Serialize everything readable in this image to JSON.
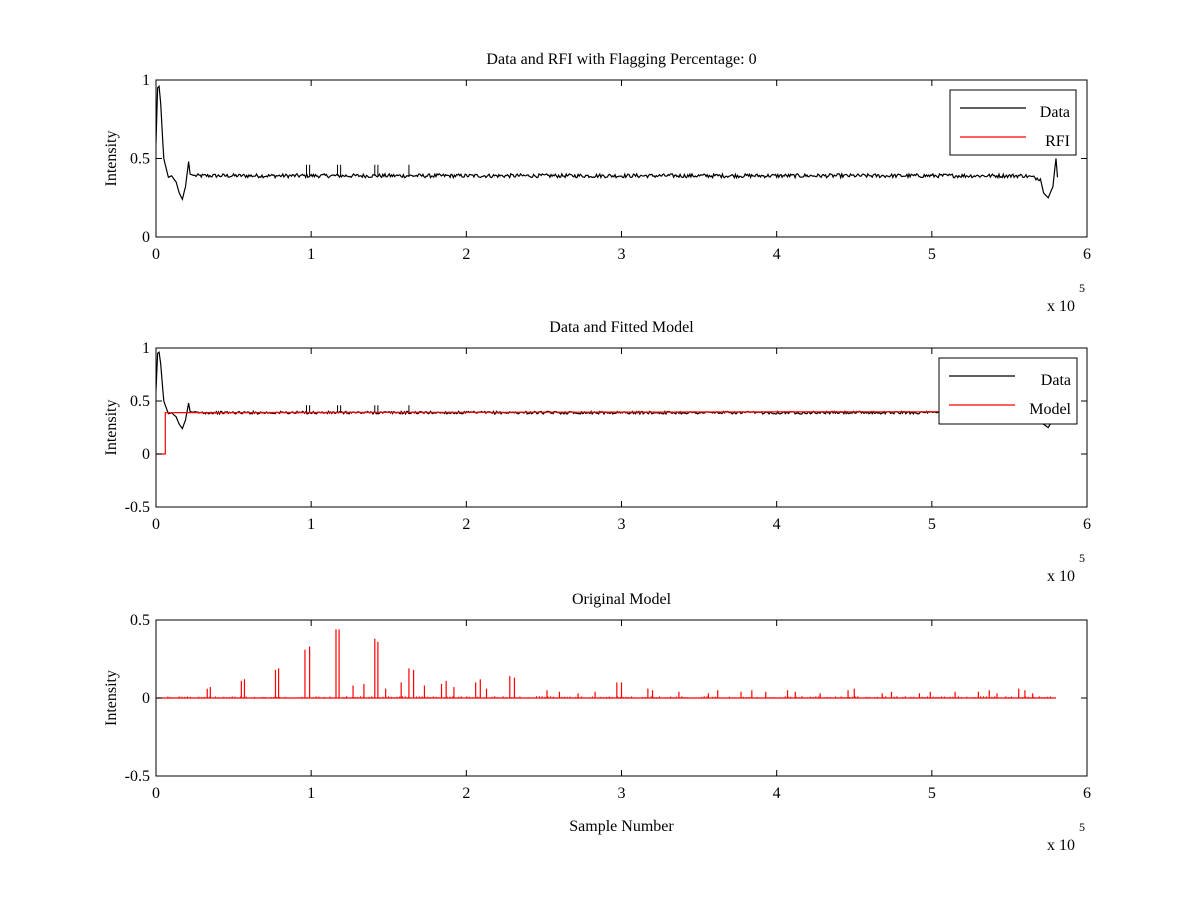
{
  "figure": {
    "panels_count": 3
  },
  "chart_data": [
    {
      "type": "line",
      "title": "Data and RFI with Flagging Percentage: 0",
      "xlabel": "",
      "ylabel": "Intensity",
      "xlim": [
        0,
        600000
      ],
      "ylim": [
        0,
        1
      ],
      "x_ticks": [
        "0",
        "1",
        "2",
        "3",
        "4",
        "5",
        "6"
      ],
      "y_ticks": [
        "0",
        "0.5",
        "1"
      ],
      "x_exponent_label": "x 10",
      "x_exponent_power": "5",
      "legend_position": "top-right",
      "legend": [
        {
          "name": "Data",
          "color": "#000000"
        },
        {
          "name": "RFI",
          "color": "#ff0000"
        }
      ],
      "series": [
        {
          "name": "Data",
          "color": "#000000",
          "baseline": 0.39,
          "x": [
            0,
            1000,
            2000,
            3000,
            5000,
            8000,
            10000,
            13000,
            15000,
            17000,
            19000,
            21000,
            22000,
            25000,
            50000,
            100000,
            200000,
            300000,
            400000,
            500000,
            560000,
            570000,
            572000,
            575000,
            578000,
            580000,
            581000
          ],
          "y": [
            0.6,
            0.95,
            0.96,
            0.85,
            0.5,
            0.38,
            0.39,
            0.35,
            0.28,
            0.24,
            0.32,
            0.48,
            0.4,
            0.39,
            0.39,
            0.39,
            0.39,
            0.39,
            0.39,
            0.39,
            0.39,
            0.37,
            0.28,
            0.25,
            0.32,
            0.5,
            0.38
          ]
        },
        {
          "name": "RFI",
          "color": "#ff0000",
          "x": [],
          "y": []
        }
      ]
    },
    {
      "type": "line",
      "title": "Data and Fitted Model",
      "xlabel": "",
      "ylabel": "Intensity",
      "xlim": [
        0,
        600000
      ],
      "ylim": [
        -0.5,
        1
      ],
      "x_ticks": [
        "0",
        "1",
        "2",
        "3",
        "4",
        "5",
        "6"
      ],
      "y_ticks": [
        "-0.5",
        "0",
        "0.5",
        "1"
      ],
      "x_exponent_label": "x 10",
      "x_exponent_power": "5",
      "legend_position": "top-right",
      "legend": [
        {
          "name": "Data",
          "color": "#000000"
        },
        {
          "name": "Model",
          "color": "#ff0000"
        }
      ],
      "series": [
        {
          "name": "Data",
          "color": "#000000",
          "baseline": 0.39,
          "x": [
            0,
            1000,
            2000,
            3000,
            5000,
            8000,
            10000,
            13000,
            15000,
            17000,
            19000,
            21000,
            22000,
            25000,
            50000,
            100000,
            200000,
            300000,
            400000,
            500000,
            560000,
            570000,
            572000,
            575000,
            578000,
            580000,
            581000
          ],
          "y": [
            0.6,
            0.95,
            0.96,
            0.85,
            0.5,
            0.38,
            0.39,
            0.35,
            0.28,
            0.24,
            0.32,
            0.48,
            0.4,
            0.39,
            0.39,
            0.39,
            0.39,
            0.39,
            0.39,
            0.39,
            0.39,
            0.37,
            0.28,
            0.25,
            0.32,
            0.5,
            0.38
          ]
        },
        {
          "name": "Model",
          "color": "#ff0000",
          "x": [
            0,
            6000,
            6000,
            7000,
            580000
          ],
          "y": [
            0,
            0,
            0.39,
            0.39,
            0.4
          ]
        }
      ]
    },
    {
      "type": "line",
      "title": "Original Model",
      "xlabel": "Sample Number",
      "ylabel": "Intensity",
      "xlim": [
        0,
        600000
      ],
      "ylim": [
        -0.5,
        0.5
      ],
      "x_ticks": [
        "0",
        "1",
        "2",
        "3",
        "4",
        "5",
        "6"
      ],
      "y_ticks": [
        "-0.5",
        "0",
        "0.5"
      ],
      "x_exponent_label": "x 10",
      "x_exponent_power": "5",
      "legend_position": "none",
      "series": [
        {
          "color": "#ff0000",
          "baseline": 0.0,
          "spikes": [
            [
              33000,
              0.06
            ],
            [
              35000,
              0.07
            ],
            [
              55000,
              0.11
            ],
            [
              57000,
              0.12
            ],
            [
              77000,
              0.18
            ],
            [
              79000,
              0.19
            ],
            [
              96000,
              0.31
            ],
            [
              99000,
              0.33
            ],
            [
              116000,
              0.44
            ],
            [
              118000,
              0.44
            ],
            [
              141000,
              0.38
            ],
            [
              143000,
              0.36
            ],
            [
              127000,
              0.08
            ],
            [
              134000,
              0.09
            ],
            [
              148000,
              0.06
            ],
            [
              158000,
              0.1
            ],
            [
              163000,
              0.19
            ],
            [
              166000,
              0.18
            ],
            [
              173000,
              0.08
            ],
            [
              184000,
              0.09
            ],
            [
              187000,
              0.11
            ],
            [
              192000,
              0.07
            ],
            [
              206000,
              0.1
            ],
            [
              209000,
              0.12
            ],
            [
              213000,
              0.06
            ],
            [
              228000,
              0.14
            ],
            [
              231000,
              0.13
            ],
            [
              252000,
              0.05
            ],
            [
              260000,
              0.04
            ],
            [
              272000,
              0.03
            ],
            [
              283000,
              0.04
            ],
            [
              297000,
              0.1
            ],
            [
              300000,
              0.1
            ],
            [
              317000,
              0.06
            ],
            [
              320000,
              0.05
            ],
            [
              337000,
              0.04
            ],
            [
              356000,
              0.03
            ],
            [
              362000,
              0.05
            ],
            [
              377000,
              0.04
            ],
            [
              384000,
              0.05
            ],
            [
              393000,
              0.04
            ],
            [
              407000,
              0.05
            ],
            [
              412000,
              0.04
            ],
            [
              428000,
              0.03
            ],
            [
              446000,
              0.05
            ],
            [
              450000,
              0.06
            ],
            [
              468000,
              0.03
            ],
            [
              474000,
              0.04
            ],
            [
              492000,
              0.03
            ],
            [
              499000,
              0.04
            ],
            [
              515000,
              0.04
            ],
            [
              530000,
              0.04
            ],
            [
              537000,
              0.05
            ],
            [
              542000,
              0.03
            ],
            [
              556000,
              0.06
            ],
            [
              560000,
              0.05
            ],
            [
              565000,
              0.03
            ]
          ],
          "x_end": 580000
        }
      ]
    }
  ]
}
